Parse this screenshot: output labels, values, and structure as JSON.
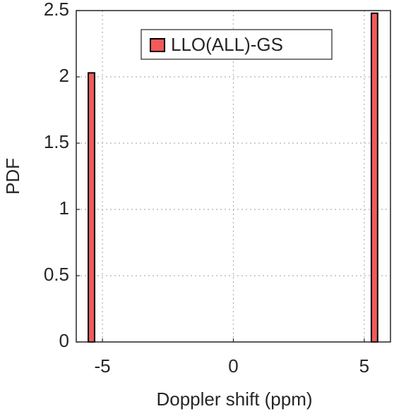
{
  "chart_data": {
    "type": "histogram",
    "xlabel": "Doppler shift (ppm)",
    "ylabel": "PDF",
    "bins": [
      -5.54,
      -5.3,
      5.27,
      5.51
    ],
    "values": [
      2.03,
      0,
      2.48
    ],
    "series_name": "LLO(ALL)-GS",
    "color": "#f25a5a",
    "xlim": [
      -6,
      6
    ],
    "ylim": [
      0,
      2.5
    ],
    "xticks": [
      -5,
      0,
      5
    ],
    "yticks": [
      0,
      0.5,
      1,
      1.5,
      2,
      2.5
    ],
    "grid": true,
    "legend_position": "top"
  }
}
